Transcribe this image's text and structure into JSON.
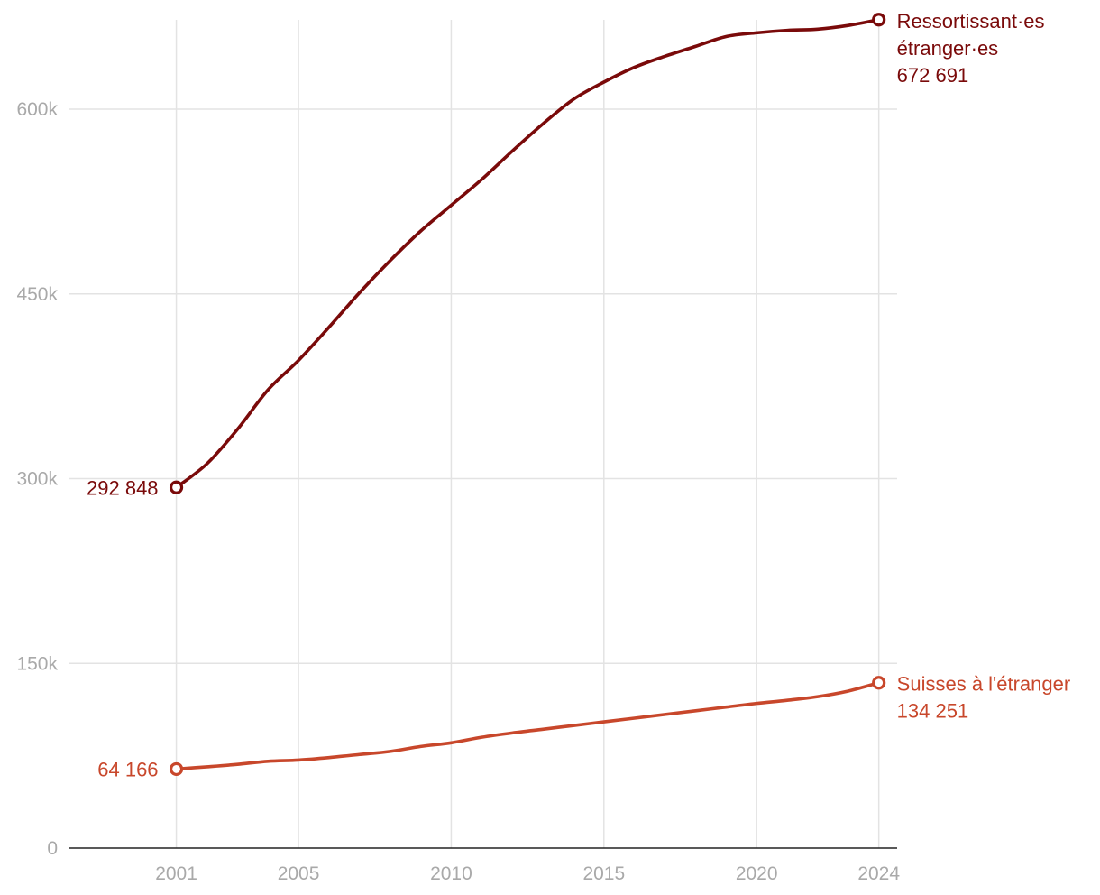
{
  "chart_data": {
    "type": "line",
    "title": "",
    "xlabel": "",
    "ylabel": "",
    "xlim": [
      1997.5,
      2024.6
    ],
    "ylim": [
      0,
      690000
    ],
    "x_ticks": [
      {
        "value": 2001,
        "label": "2001"
      },
      {
        "value": 2005,
        "label": "2005"
      },
      {
        "value": 2010,
        "label": "2010"
      },
      {
        "value": 2015,
        "label": "2015"
      },
      {
        "value": 2020,
        "label": "2020"
      },
      {
        "value": 2024,
        "label": "2024"
      }
    ],
    "y_ticks": [
      {
        "value": 0,
        "label": "0"
      },
      {
        "value": 150000,
        "label": "150k"
      },
      {
        "value": 300000,
        "label": "300k"
      },
      {
        "value": 450000,
        "label": "450k"
      },
      {
        "value": 600000,
        "label": "600k"
      }
    ],
    "grid": true,
    "x": [
      2001,
      2002,
      2003,
      2004,
      2005,
      2006,
      2007,
      2008,
      2009,
      2010,
      2011,
      2012,
      2013,
      2014,
      2015,
      2016,
      2017,
      2018,
      2019,
      2020,
      2021,
      2022,
      2023,
      2024
    ],
    "series": [
      {
        "name": "Ressortissant·es étranger·es",
        "name_lines": [
          "Ressortissant·es",
          "étranger·es"
        ],
        "color": "#7a0a0a",
        "start_label": "292 848",
        "end_label": "672 691",
        "values": [
          292848,
          312000,
          340000,
          372000,
          396000,
          423000,
          451000,
          477000,
          501000,
          522000,
          543000,
          566000,
          588000,
          608000,
          622000,
          634000,
          643000,
          651000,
          659000,
          662000,
          664000,
          665000,
          668000,
          672691
        ]
      },
      {
        "name": "Suisses à l'étranger",
        "name_lines": [
          "Suisses à l'étranger"
        ],
        "color": "#c8472b",
        "start_label": "64 166",
        "end_label": "134 251",
        "values": [
          64166,
          66000,
          68000,
          70500,
          71500,
          73500,
          76000,
          78500,
          82500,
          85500,
          90000,
          93500,
          96500,
          99500,
          102500,
          105500,
          108500,
          111500,
          114500,
          117500,
          120000,
          123000,
          127500,
          134251
        ]
      }
    ]
  }
}
